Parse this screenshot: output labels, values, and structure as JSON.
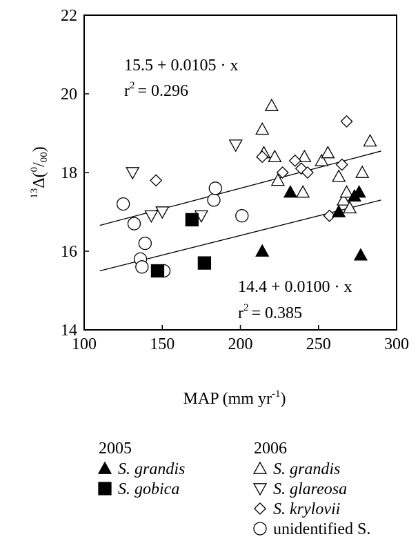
{
  "chart_data": {
    "type": "scatter",
    "xlabel": "MAP (mm yr-1)",
    "ylabel": "13Δ(0/00)",
    "xlim": [
      100,
      300
    ],
    "ylim": [
      14,
      22
    ],
    "x_ticks": [
      100,
      150,
      200,
      250,
      300
    ],
    "y_ticks": [
      14,
      16,
      18,
      20,
      22
    ],
    "grid": false,
    "legend_position": "bottom",
    "legend_groups": [
      {
        "title": "2005",
        "entries": [
          "S. grandis",
          "S. gobica"
        ]
      },
      {
        "title": "2006",
        "entries": [
          "S. grandis",
          "S. glareosa",
          "S. krylovii",
          "unidentified S."
        ]
      }
    ],
    "series": [
      {
        "name": "S. grandis",
        "year": "2005",
        "marker": "triangle-up-filled",
        "points": [
          [
            214,
            16.0
          ],
          [
            232,
            17.5
          ],
          [
            263,
            17.0
          ],
          [
            273,
            17.4
          ],
          [
            276,
            17.5
          ],
          [
            277,
            15.9
          ]
        ]
      },
      {
        "name": "S. gobica",
        "year": "2005",
        "marker": "square-filled",
        "points": [
          [
            147,
            15.5
          ],
          [
            169,
            16.8
          ],
          [
            177,
            15.7
          ]
        ]
      },
      {
        "name": "S. grandis",
        "year": "2006",
        "marker": "triangle-up-open",
        "points": [
          [
            214,
            19.1
          ],
          [
            215,
            18.5
          ],
          [
            220,
            19.7
          ],
          [
            222,
            18.4
          ],
          [
            224,
            17.8
          ],
          [
            240,
            17.5
          ],
          [
            241,
            18.4
          ],
          [
            252,
            18.3
          ],
          [
            256,
            18.5
          ],
          [
            263,
            17.9
          ],
          [
            266,
            17.3
          ],
          [
            268,
            17.5
          ],
          [
            270,
            17.1
          ],
          [
            278,
            18.0
          ],
          [
            283,
            18.8
          ]
        ]
      },
      {
        "name": "S. glareosa",
        "year": "2006",
        "marker": "triangle-down-open",
        "points": [
          [
            131,
            18.0
          ],
          [
            143,
            16.9
          ],
          [
            150,
            17.0
          ],
          [
            175,
            16.9
          ],
          [
            197,
            18.7
          ]
        ]
      },
      {
        "name": "S. krylovii",
        "year": "2006",
        "marker": "diamond-open",
        "points": [
          [
            146,
            17.8
          ],
          [
            214,
            18.4
          ],
          [
            227,
            18.0
          ],
          [
            235,
            18.3
          ],
          [
            239,
            18.1
          ],
          [
            243,
            18.0
          ],
          [
            257,
            16.9
          ],
          [
            265,
            18.2
          ],
          [
            268,
            19.3
          ]
        ]
      },
      {
        "name": "unidentified S.",
        "year": "2006",
        "marker": "circle-open",
        "points": [
          [
            125,
            17.2
          ],
          [
            132,
            16.7
          ],
          [
            139,
            16.2
          ],
          [
            136,
            15.8
          ],
          [
            137,
            15.6
          ],
          [
            151,
            15.5
          ],
          [
            183,
            17.3
          ],
          [
            184,
            17.6
          ],
          [
            201,
            16.9
          ]
        ]
      }
    ],
    "fit_lines": [
      {
        "equation": "15.5 + 0.0105 · x",
        "r2_label": "r",
        "r2_exp": "2",
        "r2_value": "= 0.296",
        "intercept": 15.5,
        "slope": 0.0105,
        "x_range": [
          110,
          290
        ]
      },
      {
        "equation": "14.4 + 0.0100 · x",
        "r2_label": "r",
        "r2_exp": "2",
        "r2_value": "= 0.385",
        "intercept": 14.4,
        "slope": 0.01,
        "x_range": [
          110,
          290
        ]
      }
    ]
  }
}
